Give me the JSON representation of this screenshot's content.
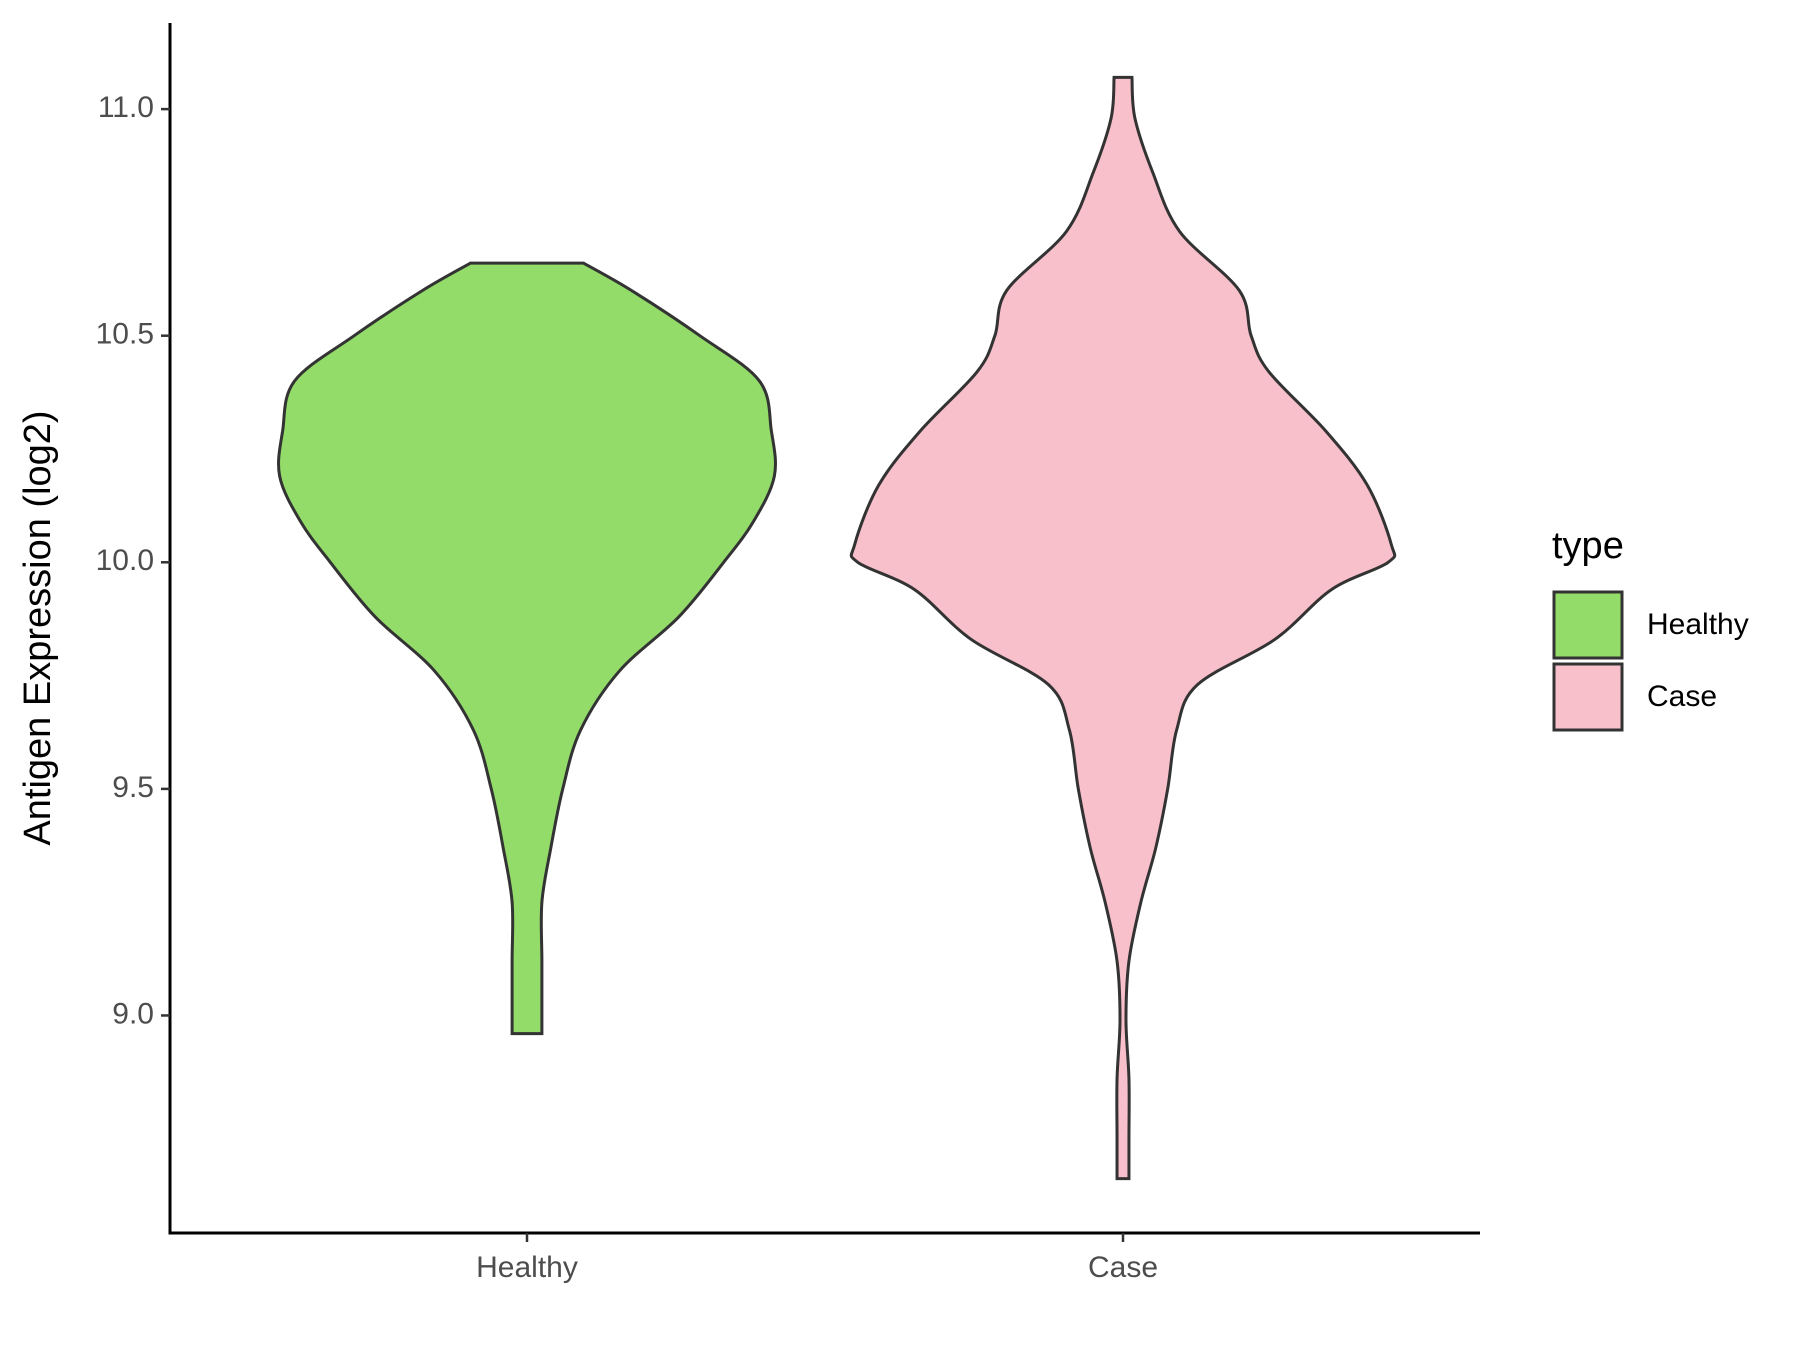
{
  "chart_data": {
    "type": "violin",
    "ylabel": "Antigen Expression (log2)",
    "categories": [
      "Healthy",
      "Case"
    ],
    "legend_title": "type",
    "legend": "right",
    "series": [
      {
        "name": "Healthy",
        "color": "#93dc6a",
        "values": [
          10.66,
          10.6,
          10.5,
          10.4,
          10.29,
          10.19,
          10.09,
          10.0,
          9.88,
          9.76,
          9.63,
          9.5,
          9.37,
          9.25,
          9.12,
          9.0,
          8.96
        ],
        "widths": [
          0.19,
          0.35,
          0.58,
          0.78,
          0.82,
          0.83,
          0.76,
          0.66,
          0.51,
          0.31,
          0.18,
          0.12,
          0.08,
          0.05,
          0.05,
          0.05,
          0.05
        ]
      },
      {
        "name": "Case",
        "color": "#f8c0cb",
        "values": [
          11.07,
          10.98,
          10.86,
          10.73,
          10.6,
          10.5,
          10.42,
          10.29,
          10.17,
          10.04,
          10.0,
          9.94,
          9.83,
          9.73,
          9.63,
          9.5,
          9.37,
          9.25,
          9.12,
          8.99,
          8.86,
          8.73,
          8.64
        ],
        "widths": [
          0.03,
          0.04,
          0.1,
          0.19,
          0.39,
          0.43,
          0.49,
          0.68,
          0.82,
          0.9,
          0.89,
          0.7,
          0.51,
          0.25,
          0.18,
          0.15,
          0.11,
          0.06,
          0.02,
          0.01,
          0.02,
          0.02,
          0.02
        ]
      }
    ],
    "ylim": [
      8.52,
      11.19
    ],
    "yticks": [
      {
        "value": 9.0,
        "label": "9.0"
      },
      {
        "value": 9.5,
        "label": "9.5"
      },
      {
        "value": 10.0,
        "label": "10.0"
      },
      {
        "value": 10.5,
        "label": "10.5"
      },
      {
        "value": 11.0,
        "label": "11.0"
      }
    ],
    "grid": false
  }
}
